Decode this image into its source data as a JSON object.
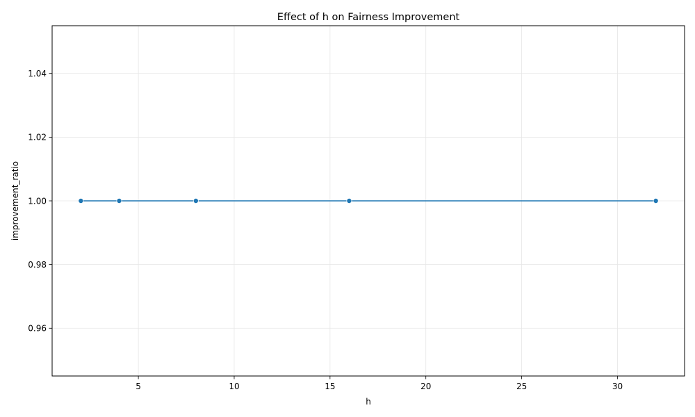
{
  "chart_data": {
    "type": "line",
    "title": "Effect of h on Fairness Improvement",
    "xlabel": "h",
    "ylabel": "improvement_ratio",
    "x": [
      2,
      4,
      8,
      16,
      32
    ],
    "series": [
      {
        "values": [
          1.0,
          1.0,
          1.0,
          1.0,
          1.0
        ],
        "color": "#1f77b4",
        "marker": "circle"
      }
    ],
    "xlim": [
      0.5,
      33.5
    ],
    "ylim": [
      0.945,
      1.055
    ],
    "xticks": [
      5,
      10,
      15,
      20,
      25,
      30
    ],
    "xtick_labels": [
      "5",
      "10",
      "15",
      "20",
      "25",
      "30"
    ],
    "yticks": [
      0.96,
      0.98,
      1.0,
      1.02,
      1.04
    ],
    "ytick_labels": [
      "0.96",
      "0.98",
      "1.00",
      "1.02",
      "1.04"
    ],
    "grid": true,
    "grid_color": "#e6e6e6",
    "axis_color": "#000000"
  }
}
